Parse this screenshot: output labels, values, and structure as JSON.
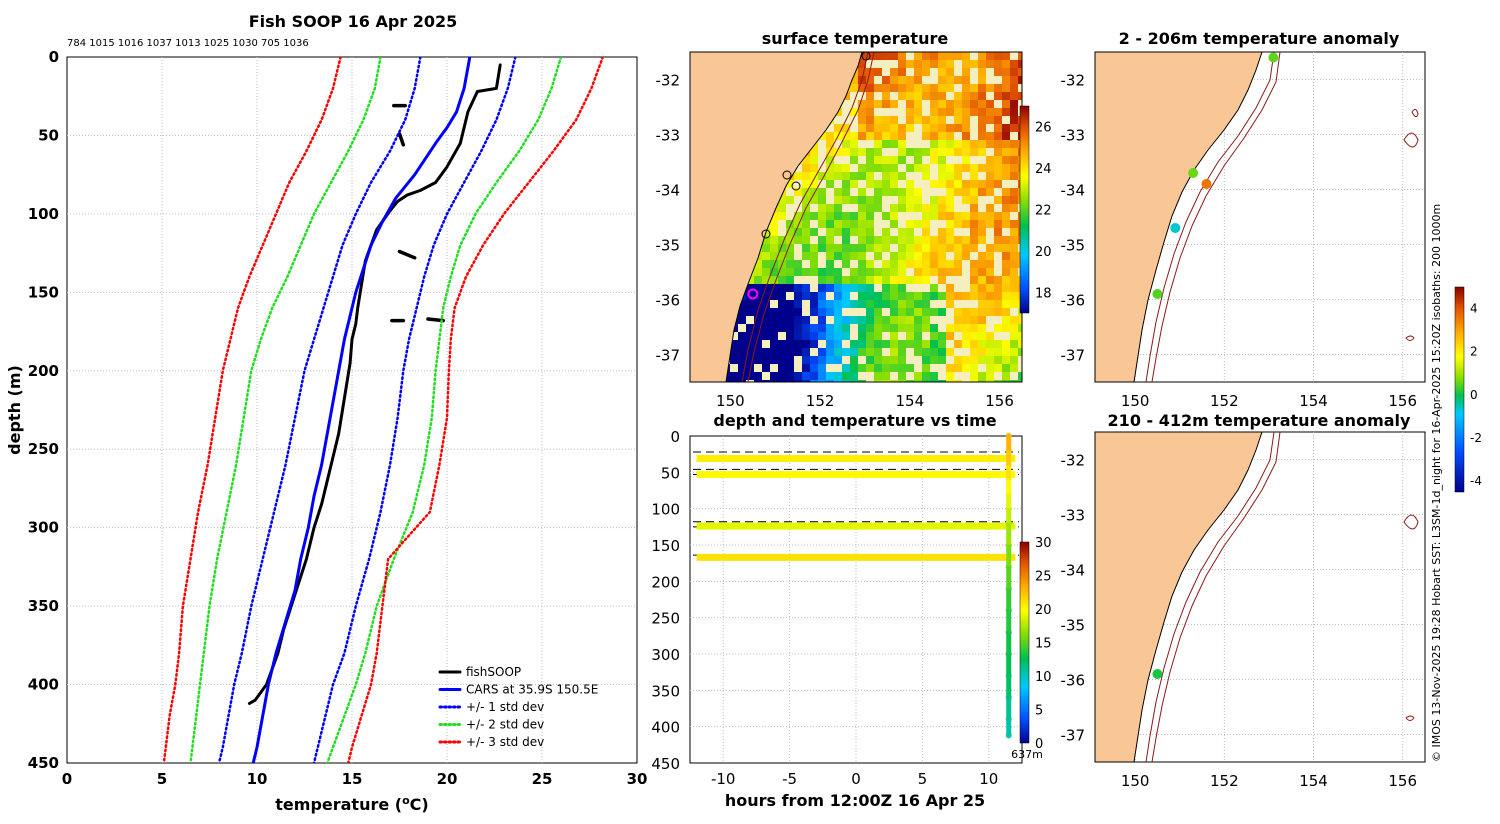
{
  "colors": {
    "land": "#f9c795",
    "fish": "#000000",
    "cars": "#0000ff",
    "std1": "#0000ff",
    "std2": "#22dd22",
    "std3": "#ff0000",
    "grid": "#bdbdbd",
    "isobath": "#8b1a1a",
    "marker": "#ff00ff"
  },
  "chart_data": [
    {
      "id": "profile",
      "type": "line",
      "title": "Fish SOOP 16 Apr 2025",
      "subtitle": "784 1015 1016 1037 1013 1025 1030 705 1036",
      "xlabel": "temperature (",
      "xlabel_unit": "o",
      "xlabel_tail": "C)",
      "ylabel": "depth (m)",
      "xlim": [
        0,
        30
      ],
      "ylim": [
        0,
        450
      ],
      "y_reversed": true,
      "xticks": [
        0,
        5,
        10,
        15,
        20,
        25,
        30
      ],
      "yticks": [
        0,
        50,
        100,
        150,
        200,
        250,
        300,
        350,
        400,
        450
      ],
      "legend": [
        "fishSOOP",
        "CARS at 35.9S 150.5E",
        "+/- 1 std dev",
        "+/- 2 std dev",
        "+/- 3 std dev"
      ],
      "series": [
        {
          "name": "fishSOOP",
          "color": "#000000",
          "style": "solid",
          "x": [
            22.8,
            22.6,
            21.6,
            21.1,
            20.7,
            20.0,
            19.4,
            18.6,
            17.9,
            17.4,
            17.0,
            16.3,
            15.7,
            15.5,
            15.3,
            15.2,
            15.0,
            14.9,
            14.7,
            14.5,
            14.3,
            14.0,
            13.7,
            13.4,
            13.0,
            12.6,
            12.2,
            11.8,
            11.4,
            11.1,
            10.8,
            10.5,
            10.2,
            9.9,
            9.6
          ],
          "y": [
            5,
            20,
            22,
            35,
            55,
            70,
            80,
            85,
            88,
            92,
            98,
            110,
            130,
            145,
            160,
            170,
            180,
            195,
            210,
            225,
            240,
            255,
            270,
            285,
            300,
            320,
            335,
            350,
            365,
            380,
            390,
            400,
            405,
            410,
            412
          ]
        },
        {
          "name": "fishSOOP fragments",
          "color": "#000000",
          "style": "fragments",
          "segments": [
            {
              "x": [
                17.2,
                17.8
              ],
              "y": [
                31,
                31
              ]
            },
            {
              "x": [
                17.5,
                17.7
              ],
              "y": [
                49,
                56
              ]
            },
            {
              "x": [
                17.5,
                18.3
              ],
              "y": [
                124,
                128
              ]
            },
            {
              "x": [
                17.1,
                17.7
              ],
              "y": [
                168,
                168
              ]
            },
            {
              "x": [
                19.0,
                19.8
              ],
              "y": [
                167,
                168
              ]
            }
          ]
        },
        {
          "name": "CARS at 35.9S 150.5E",
          "color": "#0000ff",
          "style": "solid",
          "x": [
            21.2,
            20.9,
            20.5,
            20.0,
            19.4,
            18.3,
            17.3,
            16.6,
            16.0,
            15.6,
            15.2,
            14.9,
            14.6,
            14.3,
            14.0,
            13.7,
            13.4,
            13.0,
            12.7,
            12.3,
            12.0,
            11.5,
            11.0,
            10.6,
            10.3,
            10.0,
            9.8
          ],
          "y": [
            0,
            20,
            35,
            45,
            55,
            75,
            90,
            105,
            120,
            135,
            150,
            165,
            180,
            200,
            220,
            240,
            260,
            280,
            300,
            320,
            340,
            360,
            380,
            400,
            420,
            440,
            450
          ]
        },
        {
          "name": "+/- 1 std dev lower",
          "color": "#0000ff",
          "style": "dotted",
          "x": [
            18.6,
            18.3,
            17.8,
            17.0,
            16.0,
            15.2,
            14.5,
            14.0,
            13.5,
            13.0,
            12.5,
            12.0,
            11.5,
            10.9,
            10.3,
            9.7,
            9.2,
            8.8,
            8.5,
            8.2,
            8.0
          ],
          "y": [
            0,
            20,
            40,
            60,
            80,
            100,
            120,
            140,
            160,
            180,
            200,
            230,
            260,
            290,
            320,
            350,
            380,
            400,
            420,
            440,
            450
          ]
        },
        {
          "name": "+/- 1 std dev upper",
          "color": "#0000ff",
          "style": "dotted",
          "x": [
            23.6,
            23.2,
            22.6,
            21.8,
            20.9,
            20.0,
            19.3,
            18.8,
            18.4,
            18.0,
            17.7,
            17.4,
            17.0,
            16.5,
            15.9,
            15.2,
            14.6,
            14.0,
            13.6,
            13.2,
            13.0
          ],
          "y": [
            0,
            20,
            40,
            60,
            80,
            100,
            120,
            140,
            160,
            180,
            200,
            230,
            260,
            290,
            320,
            350,
            380,
            400,
            420,
            440,
            450
          ]
        },
        {
          "name": "+/- 2 std dev lower",
          "color": "#22dd22",
          "style": "dotted",
          "x": [
            16.5,
            16.2,
            15.6,
            14.8,
            13.9,
            13.0,
            12.3,
            11.6,
            10.8,
            10.2,
            9.7,
            9.3,
            8.9,
            8.4,
            7.9,
            7.5,
            7.2,
            7.0,
            6.8,
            6.6,
            6.5
          ],
          "y": [
            0,
            20,
            40,
            60,
            80,
            100,
            120,
            140,
            160,
            180,
            200,
            230,
            260,
            290,
            320,
            350,
            380,
            400,
            420,
            440,
            450
          ]
        },
        {
          "name": "+/- 2 std dev upper",
          "color": "#22dd22",
          "style": "dotted",
          "x": [
            26.0,
            25.5,
            24.8,
            23.8,
            22.6,
            21.5,
            20.7,
            20.2,
            19.8,
            19.6,
            19.4,
            19.2,
            18.8,
            18.2,
            17.2,
            16.3,
            15.7,
            15.2,
            14.6,
            14.0,
            13.7
          ],
          "y": [
            0,
            20,
            40,
            60,
            80,
            100,
            120,
            140,
            160,
            180,
            200,
            230,
            260,
            290,
            320,
            350,
            380,
            400,
            420,
            440,
            450
          ]
        },
        {
          "name": "+/- 3 std dev lower",
          "color": "#ff0000",
          "style": "dotted",
          "x": [
            14.4,
            14.0,
            13.4,
            12.6,
            11.7,
            11.0,
            10.3,
            9.6,
            9.0,
            8.6,
            8.2,
            7.8,
            7.4,
            6.9,
            6.5,
            6.1,
            5.9,
            5.7,
            5.4,
            5.2,
            5.1
          ],
          "y": [
            0,
            20,
            40,
            60,
            80,
            100,
            120,
            140,
            160,
            180,
            200,
            230,
            260,
            290,
            320,
            350,
            380,
            400,
            420,
            440,
            450
          ]
        },
        {
          "name": "+/- 3 std dev upper",
          "color": "#ff0000",
          "style": "dotted",
          "x": [
            28.2,
            27.6,
            26.8,
            25.6,
            24.3,
            23.0,
            21.9,
            21.0,
            20.4,
            20.2,
            20.1,
            20.0,
            19.6,
            19.1,
            16.9,
            16.6,
            16.3,
            16.0,
            15.5,
            15.0,
            14.8
          ],
          "y": [
            0,
            20,
            40,
            60,
            80,
            100,
            120,
            140,
            160,
            180,
            200,
            230,
            260,
            290,
            320,
            350,
            380,
            400,
            420,
            440,
            450
          ]
        }
      ]
    },
    {
      "id": "sst_map",
      "type": "heatmap",
      "title": "surface temperature",
      "xlim": [
        149.1,
        156.5
      ],
      "ylim": [
        -37.5,
        -31.5
      ],
      "xticks": [
        "150",
        "152",
        "154",
        "156"
      ],
      "yticks": [
        "-32",
        "-33",
        "-34",
        "-35",
        "-36",
        "-37"
      ],
      "colorbar": {
        "min": 17,
        "max": 27,
        "ticks": [
          "18",
          "20",
          "22",
          "24",
          "26"
        ]
      },
      "profile_location": {
        "lon": 150.5,
        "lat": -35.9
      }
    },
    {
      "id": "depth_time",
      "type": "scatter",
      "title": "depth and temperature vs time",
      "xlabel": "hours from 12:00Z 16 Apr 25",
      "xlim": [
        -12.5,
        12.5
      ],
      "ylim": [
        0,
        450
      ],
      "y_reversed": true,
      "xticks": [
        "-10",
        "-5",
        "0",
        "5",
        "10"
      ],
      "yticks": [
        "0",
        "50",
        "100",
        "150",
        "200",
        "250",
        "300",
        "350",
        "400",
        "450"
      ],
      "colorbar": {
        "min": 0,
        "max": 30,
        "ticks": [
          "0",
          "5",
          "10",
          "15",
          "20",
          "25",
          "30"
        ]
      },
      "bottom_depth_label": "637m",
      "dashed_depths": [
        22,
        46,
        53,
        118,
        125,
        164
      ],
      "tracks": [
        {
          "depth": 31,
          "temp": 20.5,
          "t_start": -12,
          "t_end": 12
        },
        {
          "depth": 53,
          "temp": 20.0,
          "t_start": -12,
          "t_end": 12
        },
        {
          "depth": 124,
          "temp": 19.0,
          "t_start": -12,
          "t_end": 12
        },
        {
          "depth": 167,
          "temp": 21.0,
          "t_start": -12,
          "t_end": 12
        }
      ],
      "cast": {
        "t": 11.5,
        "depth": [
          0,
          20,
          40,
          60,
          80,
          100,
          120,
          150,
          180,
          210,
          240,
          270,
          300,
          330,
          360,
          390,
          412
        ],
        "temp": [
          23,
          22,
          21,
          20,
          19,
          18,
          17,
          16,
          15,
          14,
          13.5,
          13,
          12.5,
          12,
          11,
          10.5,
          10
        ]
      }
    },
    {
      "id": "anomaly_2_206",
      "type": "scatter",
      "title": "2 - 206m temperature anomaly",
      "xlim": [
        149.1,
        156.5
      ],
      "ylim": [
        -37.5,
        -31.5
      ],
      "xticks": [
        "150",
        "152",
        "154",
        "156"
      ],
      "yticks": [
        "-32",
        "-33",
        "-34",
        "-35",
        "-36",
        "-37"
      ],
      "points": [
        {
          "lon": 153.1,
          "lat": -31.6,
          "anomaly": 0.3
        },
        {
          "lon": 151.3,
          "lat": -33.7,
          "anomaly": 0.4
        },
        {
          "lon": 151.6,
          "lat": -33.9,
          "anomaly": 3.6
        },
        {
          "lon": 150.9,
          "lat": -34.7,
          "anomaly": -1.5
        },
        {
          "lon": 150.5,
          "lat": -35.9,
          "anomaly": 0.2
        }
      ]
    },
    {
      "id": "anomaly_210_412",
      "type": "scatter",
      "title": "210 - 412m temperature anomaly",
      "xlim": [
        149.1,
        156.5
      ],
      "ylim": [
        -37.5,
        -31.5
      ],
      "xticks": [
        "150",
        "152",
        "154",
        "156"
      ],
      "yticks": [
        "-32",
        "-33",
        "-34",
        "-35",
        "-36",
        "-37"
      ],
      "points": [
        {
          "lon": 150.5,
          "lat": -35.9,
          "anomaly": -0.3
        }
      ]
    },
    {
      "id": "anomaly_colorbar",
      "type": "heatmap",
      "min": -4.5,
      "max": 5,
      "ticks": [
        "4",
        "2",
        "0",
        "-2",
        "-4"
      ]
    }
  ],
  "footer": {
    "credit": "© IMOS 13-Nov-2025 19:28 Hobart SST: L3SM-1d_night for 16-Apr-2025 15:20Z isobaths: 200  1000m"
  }
}
